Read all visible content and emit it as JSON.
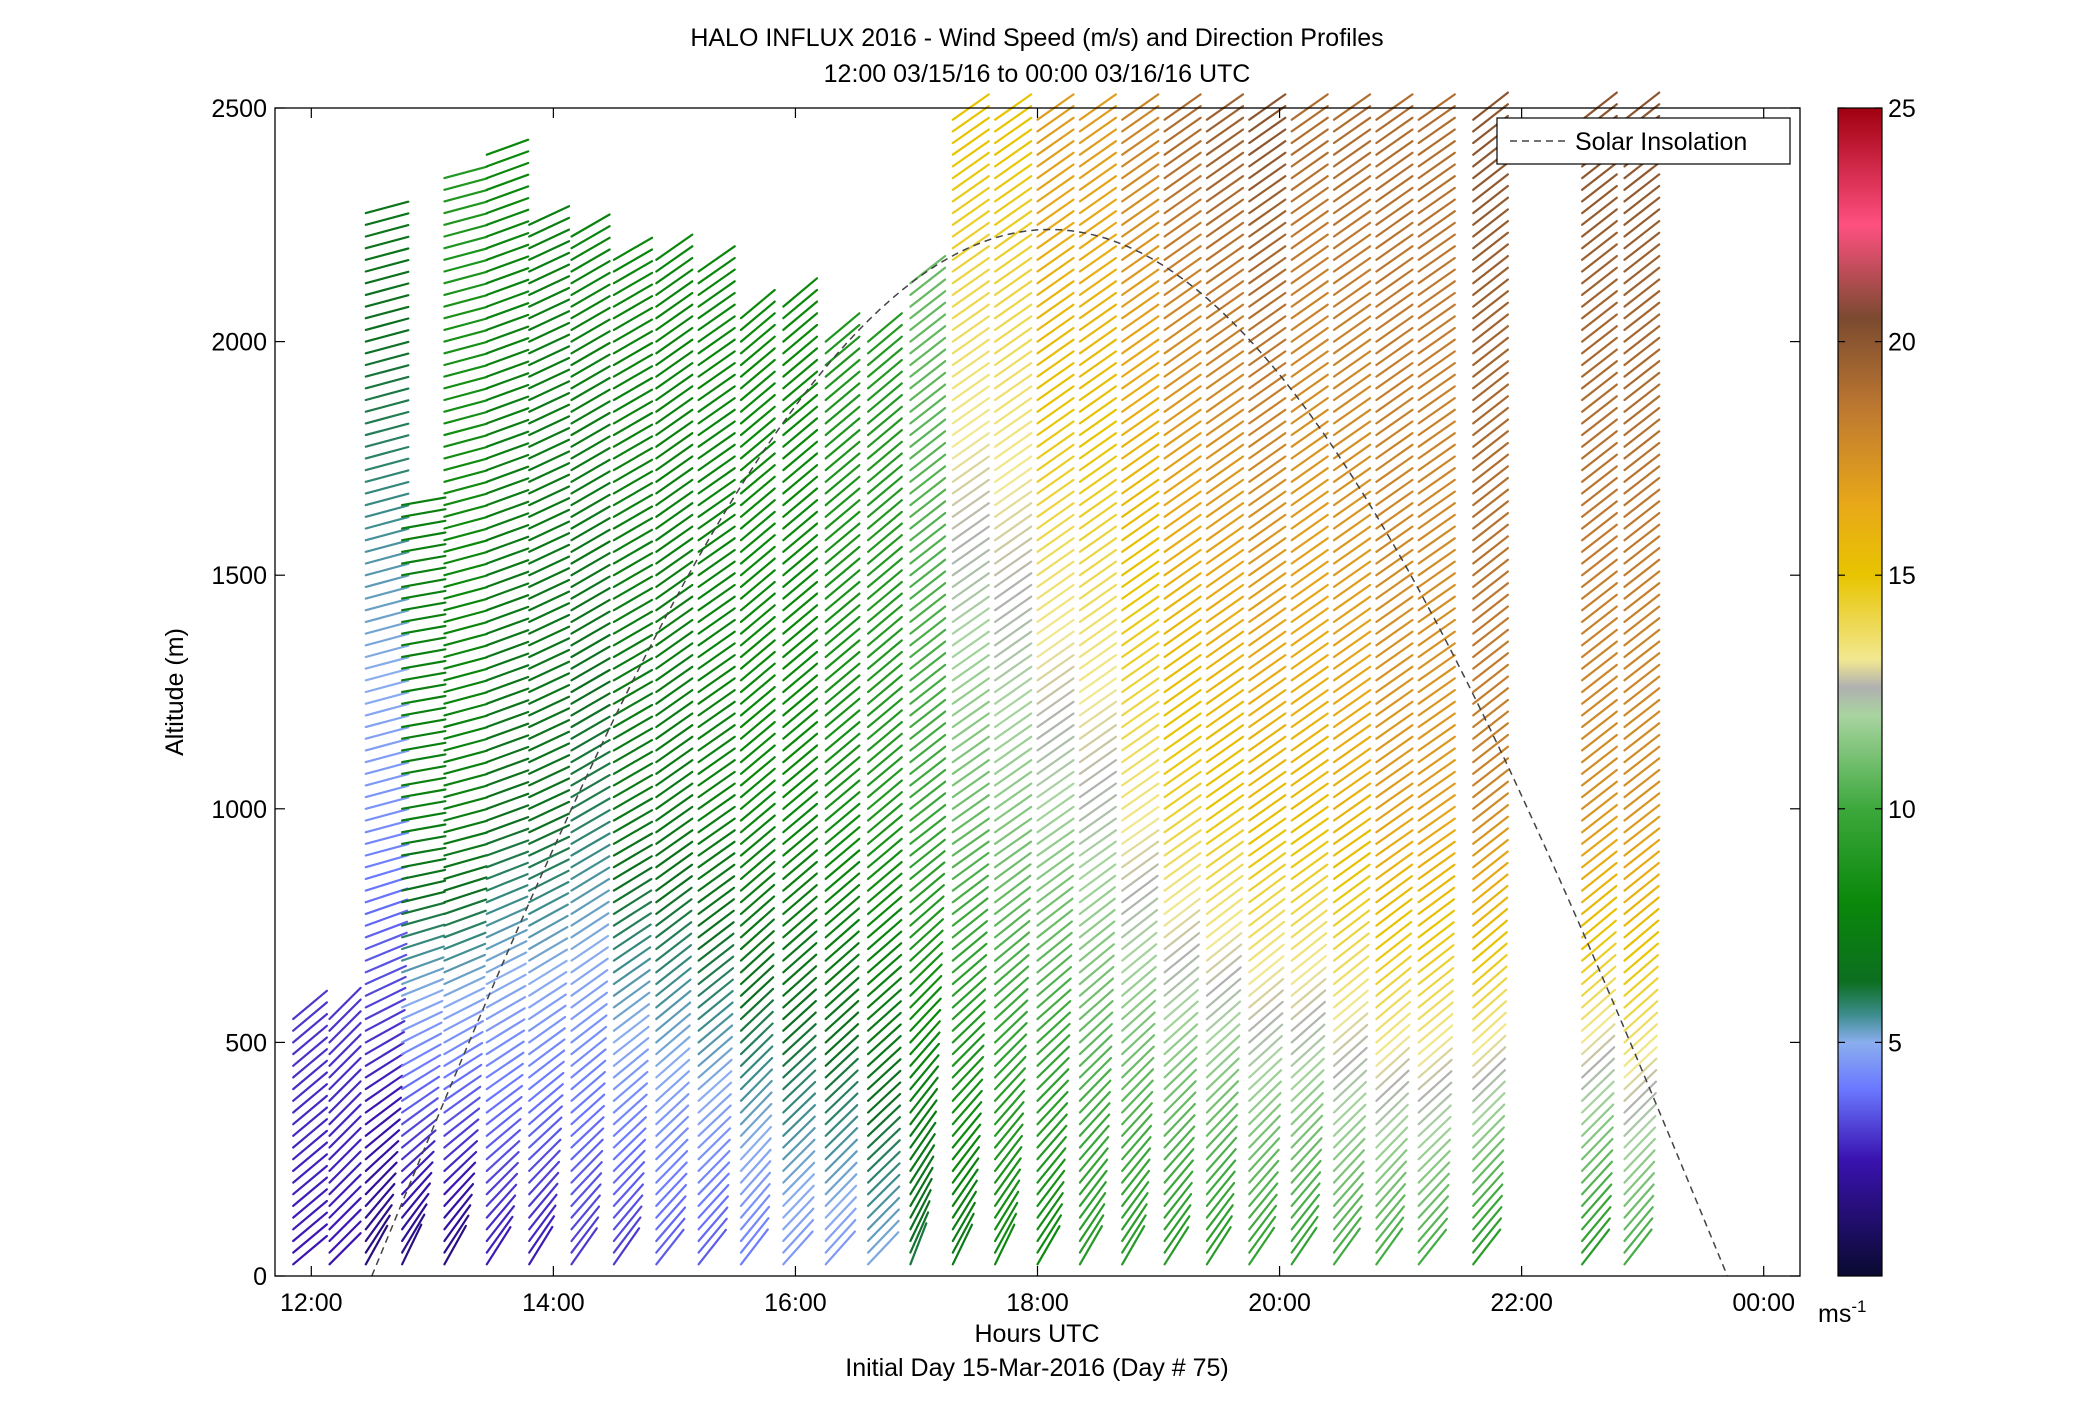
{
  "chart_data": {
    "type": "wind_barb_profile",
    "title": "HALO INFLUX 2016 - Wind Speed (m/s) and Direction Profiles",
    "subtitle": "12:00 03/15/16 to 00:00 03/16/16  UTC",
    "xlabel": "Hours UTC",
    "xlabel2": "Initial Day 15-Mar-2016 (Day # 75)",
    "ylabel": "Altitude (m)",
    "xlim_hours": [
      11.7,
      24.3
    ],
    "ylim": [
      0,
      2500
    ],
    "x_ticks": [
      {
        "value": 12,
        "label": "12:00"
      },
      {
        "value": 14,
        "label": "14:00"
      },
      {
        "value": 16,
        "label": "16:00"
      },
      {
        "value": 18,
        "label": "18:00"
      },
      {
        "value": 20,
        "label": "20:00"
      },
      {
        "value": 22,
        "label": "22:00"
      },
      {
        "value": 24,
        "label": "00:00"
      }
    ],
    "y_ticks": [
      {
        "value": 0,
        "label": "0"
      },
      {
        "value": 500,
        "label": "500"
      },
      {
        "value": 1000,
        "label": "1000"
      },
      {
        "value": 1500,
        "label": "1500"
      },
      {
        "value": 2000,
        "label": "2000"
      },
      {
        "value": 2500,
        "label": "2500"
      }
    ],
    "colorbar": {
      "range": [
        0,
        25
      ],
      "unit_label": "ms",
      "unit_exponent": "-1",
      "ticks": [
        {
          "value": 5,
          "label": "5"
        },
        {
          "value": 10,
          "label": "10"
        },
        {
          "value": 15,
          "label": "15"
        },
        {
          "value": 20,
          "label": "20"
        },
        {
          "value": 25,
          "label": "25"
        }
      ],
      "stops": [
        {
          "v": 0,
          "c": "#0a0a30"
        },
        {
          "v": 2.5,
          "c": "#3a12b0"
        },
        {
          "v": 4,
          "c": "#6a78ff"
        },
        {
          "v": 5,
          "c": "#8aaeee"
        },
        {
          "v": 5.6,
          "c": "#3c8c8c"
        },
        {
          "v": 6.3,
          "c": "#0c6e20"
        },
        {
          "v": 8,
          "c": "#0a880a"
        },
        {
          "v": 10,
          "c": "#3ca83c"
        },
        {
          "v": 12,
          "c": "#a8d4a0"
        },
        {
          "v": 12.6,
          "c": "#b0b0b0"
        },
        {
          "v": 13.2,
          "c": "#f2e890"
        },
        {
          "v": 15,
          "c": "#e8c400"
        },
        {
          "v": 16.5,
          "c": "#e8a818"
        },
        {
          "v": 18.5,
          "c": "#c07a30"
        },
        {
          "v": 20.5,
          "c": "#7a4a30"
        },
        {
          "v": 22.5,
          "c": "#ff5080"
        },
        {
          "v": 25,
          "c": "#a00010"
        }
      ]
    },
    "legend": {
      "label": "Solar Insolation",
      "placement": "top-right"
    },
    "solar_insolation": {
      "start_hour": 12.5,
      "peak_hour": 18.1,
      "end_hour": 23.7,
      "peak_altitude": 2240
    },
    "profile_interval_minutes": 20,
    "profiles": [
      {
        "time": 11.85,
        "top": 550,
        "dir_low": 230,
        "dir_high": 230,
        "spd_low": 2.5,
        "spd_high": 3.5,
        "spd_top": 3.5
      },
      {
        "time": 12.15,
        "top": 560,
        "dir_low": 225,
        "dir_high": 225,
        "spd_low": 2.5,
        "spd_high": 3.5,
        "spd_top": 3.5
      },
      {
        "time": 12.45,
        "top": 2290,
        "dir_low": 200,
        "dir_high": 255,
        "spd_low": 1.5,
        "spd_high": 4.5,
        "spd_top": 7
      },
      {
        "time": 12.75,
        "top": 1660,
        "dir_low": 195,
        "dir_high": 260,
        "spd_low": 1.5,
        "spd_high": 7.5,
        "spd_top": 7.5
      },
      {
        "time": 13.1,
        "top": 2360,
        "dir_low": 200,
        "dir_high": 255,
        "spd_low": 1.5,
        "spd_high": 7.5,
        "spd_top": 9
      },
      {
        "time": 13.45,
        "top": 2400,
        "dir_low": 205,
        "dir_high": 250,
        "spd_low": 2.5,
        "spd_high": 6.5,
        "spd_top": 8
      },
      {
        "time": 13.8,
        "top": 2250,
        "dir_low": 205,
        "dir_high": 245,
        "spd_low": 2.5,
        "spd_high": 6.5,
        "spd_top": 7.5
      },
      {
        "time": 14.15,
        "top": 2230,
        "dir_low": 210,
        "dir_high": 240,
        "spd_low": 3,
        "spd_high": 6,
        "spd_top": 8
      },
      {
        "time": 14.5,
        "top": 2190,
        "dir_low": 210,
        "dir_high": 240,
        "spd_low": 3,
        "spd_high": 7,
        "spd_top": 8
      },
      {
        "time": 14.85,
        "top": 2180,
        "dir_low": 215,
        "dir_high": 235,
        "spd_low": 3.5,
        "spd_high": 7,
        "spd_top": 8
      },
      {
        "time": 15.2,
        "top": 2160,
        "dir_low": 215,
        "dir_high": 235,
        "spd_low": 3.5,
        "spd_high": 7.5,
        "spd_top": 8
      },
      {
        "time": 15.55,
        "top": 2070,
        "dir_low": 215,
        "dir_high": 230,
        "spd_low": 4,
        "spd_high": 8,
        "spd_top": 8
      },
      {
        "time": 15.9,
        "top": 2080,
        "dir_low": 220,
        "dir_high": 230,
        "spd_low": 4.5,
        "spd_high": 8,
        "spd_top": 8
      },
      {
        "time": 16.25,
        "top": 2020,
        "dir_low": 220,
        "dir_high": 230,
        "spd_low": 4.5,
        "spd_high": 8.5,
        "spd_top": 9
      },
      {
        "time": 16.6,
        "top": 2000,
        "dir_low": 222,
        "dir_high": 230,
        "spd_low": 5,
        "spd_high": 9,
        "spd_top": 9
      },
      {
        "time": 16.95,
        "top": 2140,
        "dir_low": 195,
        "dir_high": 232,
        "spd_low": 6,
        "spd_high": 10,
        "spd_top": 11
      },
      {
        "time": 17.3,
        "top": 2480,
        "dir_low": 200,
        "dir_high": 235,
        "spd_low": 7,
        "spd_high": 11,
        "spd_top": 15
      },
      {
        "time": 17.65,
        "top": 2480,
        "dir_low": 200,
        "dir_high": 235,
        "spd_low": 8,
        "spd_high": 11.5,
        "spd_top": 15
      },
      {
        "time": 18.0,
        "top": 2480,
        "dir_low": 205,
        "dir_high": 235,
        "spd_low": 8,
        "spd_high": 12,
        "spd_top": 17
      },
      {
        "time": 18.35,
        "top": 2480,
        "dir_low": 205,
        "dir_high": 235,
        "spd_low": 9,
        "spd_high": 12.5,
        "spd_top": 17
      },
      {
        "time": 18.7,
        "top": 2480,
        "dir_low": 205,
        "dir_high": 235,
        "spd_low": 9,
        "spd_high": 13.5,
        "spd_top": 18
      },
      {
        "time": 19.05,
        "top": 2480,
        "dir_low": 208,
        "dir_high": 235,
        "spd_low": 9,
        "spd_high": 14.5,
        "spd_top": 19
      },
      {
        "time": 19.4,
        "top": 2480,
        "dir_low": 208,
        "dir_high": 235,
        "spd_low": 9,
        "spd_high": 15,
        "spd_top": 19.5
      },
      {
        "time": 19.75,
        "top": 2480,
        "dir_low": 210,
        "dir_high": 235,
        "spd_low": 9.5,
        "spd_high": 15.5,
        "spd_top": 20
      },
      {
        "time": 20.1,
        "top": 2480,
        "dir_low": 210,
        "dir_high": 235,
        "spd_low": 9.5,
        "spd_high": 15.5,
        "spd_top": 19
      },
      {
        "time": 20.45,
        "top": 2480,
        "dir_low": 212,
        "dir_high": 235,
        "spd_low": 10,
        "spd_high": 16,
        "spd_top": 19
      },
      {
        "time": 20.8,
        "top": 2480,
        "dir_low": 212,
        "dir_high": 235,
        "spd_low": 10,
        "spd_high": 17,
        "spd_top": 19
      },
      {
        "time": 21.15,
        "top": 2480,
        "dir_low": 215,
        "dir_high": 235,
        "spd_low": 10,
        "spd_high": 17,
        "spd_top": 19
      },
      {
        "time": 21.6,
        "top": 2480,
        "dir_low": 215,
        "dir_high": 232,
        "spd_low": 9,
        "spd_high": 18,
        "spd_top": 20
      },
      {
        "time": 22.5,
        "top": 2480,
        "dir_low": 215,
        "dir_high": 232,
        "spd_low": 9,
        "spd_high": 17.5,
        "spd_top": 20
      },
      {
        "time": 22.85,
        "top": 2480,
        "dir_low": 215,
        "dir_high": 232,
        "spd_low": 10,
        "spd_high": 17.5,
        "spd_top": 20
      }
    ]
  }
}
